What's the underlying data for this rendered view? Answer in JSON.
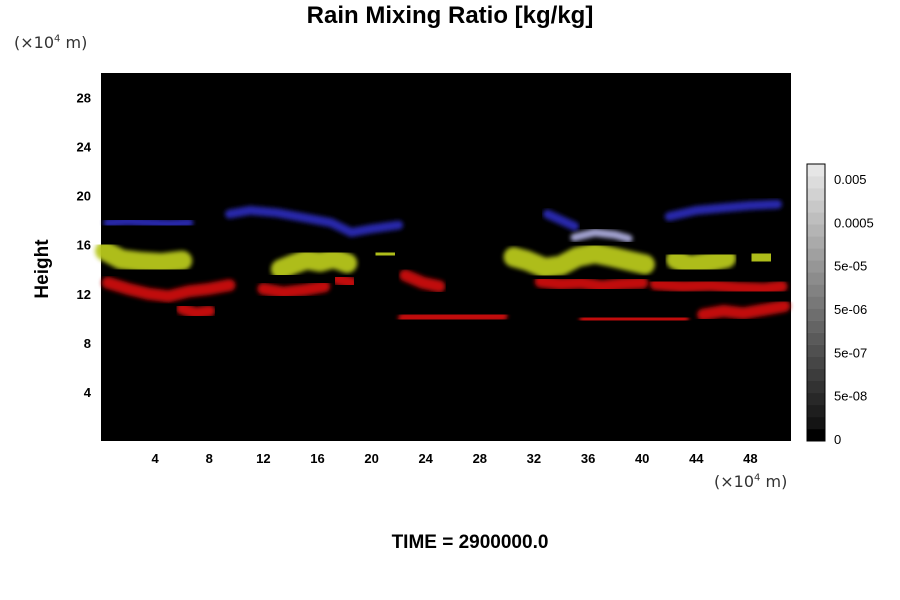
{
  "chart_data": {
    "type": "heatmap",
    "title": "Rain Mixing Ratio [kg/kg]",
    "ylabel": "Height",
    "xlabel": "",
    "x_unit": {
      "prefix": "(×10",
      "exp": "4",
      "suffix": " m)"
    },
    "y_unit": {
      "prefix": "(×10",
      "exp": "4",
      "suffix": " m)"
    },
    "xlim": [
      0,
      51
    ],
    "ylim": [
      0,
      30
    ],
    "x_ticks": [
      4,
      8,
      12,
      16,
      20,
      24,
      28,
      32,
      36,
      40,
      44,
      48
    ],
    "y_ticks": [
      4,
      8,
      12,
      16,
      20,
      24,
      28
    ],
    "colorbar": {
      "labels": [
        "0.005",
        "0.0005",
        "5e-05",
        "5e-06",
        "5e-07",
        "5e-08",
        "0"
      ],
      "shades": [
        "#000000",
        "#141414",
        "#1e1e1e",
        "#282828",
        "#323232",
        "#3c3c3c",
        "#464646",
        "#505050",
        "#5a5a5a",
        "#646464",
        "#6e6e6e",
        "#787878",
        "#828282",
        "#8c8c8c",
        "#969696",
        "#a0a0a0",
        "#aaaaaa",
        "#b4b4b4",
        "#bebebe",
        "#c8c8c8",
        "#d2d2d2",
        "#dcdcdc",
        "#e6e6e6"
      ]
    },
    "colors": {
      "background": "#000000",
      "low_band": "#cc1111",
      "mid_band": "#b8c81e",
      "high_band": "#2a2ab4",
      "cap": "#b4b4e6"
    },
    "regions": [
      {
        "band": "high",
        "points": [
          [
            0.5,
            17.8
          ],
          [
            2,
            17.9
          ],
          [
            5,
            17.7
          ],
          [
            6.5,
            17.8
          ]
        ]
      },
      {
        "band": "high",
        "points": [
          [
            9.5,
            18.5
          ],
          [
            11,
            18.8
          ],
          [
            13,
            18.6
          ],
          [
            15,
            18.2
          ],
          [
            17,
            17.8
          ],
          [
            18.5,
            17.0
          ],
          [
            20,
            17.3
          ],
          [
            22,
            17.6
          ]
        ]
      },
      {
        "band": "high",
        "points": [
          [
            33,
            18.5
          ],
          [
            34,
            18.0
          ],
          [
            35,
            17.5
          ]
        ]
      },
      {
        "band": "high",
        "points": [
          [
            42,
            18.3
          ],
          [
            44,
            18.8
          ],
          [
            46,
            19.0
          ],
          [
            48,
            19.2
          ],
          [
            50,
            19.3
          ]
        ]
      },
      {
        "band": "cap",
        "points": [
          [
            35,
            16.6
          ],
          [
            36.5,
            17.0
          ],
          [
            38,
            16.8
          ],
          [
            39,
            16.5
          ]
        ]
      },
      {
        "band": "mid",
        "points": [
          [
            0.3,
            15.5
          ],
          [
            1.5,
            14.8
          ],
          [
            3,
            14.6
          ],
          [
            4.5,
            14.5
          ],
          [
            6,
            14.7
          ]
        ]
      },
      {
        "band": "mid",
        "points": [
          [
            13.3,
            14.0
          ],
          [
            14.2,
            14.4
          ],
          [
            15.2,
            14.8
          ],
          [
            16.2,
            14.6
          ],
          [
            17.2,
            14.9
          ],
          [
            18.2,
            14.5
          ]
        ]
      },
      {
        "band": "mid",
        "points": [
          [
            20.5,
            15.3
          ],
          [
            21.5,
            15.2
          ]
        ]
      },
      {
        "band": "mid",
        "points": [
          [
            30.5,
            15.0
          ],
          [
            31.5,
            14.7
          ],
          [
            32.8,
            14.1
          ],
          [
            34,
            14.3
          ],
          [
            35.2,
            15.0
          ],
          [
            36.5,
            15.3
          ],
          [
            37.8,
            15.0
          ],
          [
            39,
            14.7
          ],
          [
            40.2,
            14.4
          ]
        ]
      },
      {
        "band": "mid",
        "points": [
          [
            42.5,
            14.8
          ],
          [
            43.5,
            14.3
          ],
          [
            45,
            14.6
          ],
          [
            46.2,
            14.9
          ]
        ]
      },
      {
        "band": "mid",
        "points": [
          [
            48.3,
            14.8
          ],
          [
            49.3,
            15.1
          ]
        ]
      },
      {
        "band": "low",
        "points": [
          [
            0.5,
            12.9
          ],
          [
            2,
            12.4
          ],
          [
            3.5,
            12.0
          ],
          [
            5,
            11.8
          ],
          [
            6.5,
            12.2
          ],
          [
            8,
            12.4
          ],
          [
            9.5,
            12.7
          ]
        ]
      },
      {
        "band": "low",
        "points": [
          [
            6,
            10.8
          ],
          [
            7,
            10.4
          ],
          [
            8,
            10.6
          ]
        ]
      },
      {
        "band": "low",
        "points": [
          [
            12,
            12.4
          ],
          [
            13.5,
            12.1
          ],
          [
            15,
            12.3
          ],
          [
            16.5,
            12.6
          ]
        ]
      },
      {
        "band": "low",
        "points": [
          [
            17.5,
            13.2
          ],
          [
            18.5,
            12.9
          ]
        ]
      },
      {
        "band": "low",
        "points": [
          [
            22.5,
            13.5
          ],
          [
            23.8,
            12.9
          ],
          [
            25,
            12.6
          ]
        ]
      },
      {
        "band": "low",
        "points": [
          [
            22.4,
            10.0
          ],
          [
            29.6,
            10.2
          ]
        ]
      },
      {
        "band": "low",
        "points": [
          [
            32.5,
            13.0
          ],
          [
            34,
            12.8
          ],
          [
            35.5,
            12.9
          ],
          [
            37,
            12.6
          ],
          [
            38.5,
            12.8
          ],
          [
            40,
            12.9
          ]
        ]
      },
      {
        "band": "low",
        "points": [
          [
            41,
            12.8
          ],
          [
            43,
            12.6
          ],
          [
            45,
            12.7
          ],
          [
            47,
            12.5
          ],
          [
            49,
            12.4
          ],
          [
            50.3,
            12.6
          ]
        ]
      },
      {
        "band": "low",
        "points": [
          [
            35.8,
            9.9
          ],
          [
            37,
            10.0
          ],
          [
            38.5,
            10.0
          ],
          [
            40,
            10.0
          ],
          [
            41.5,
            9.9
          ],
          [
            43,
            10.0
          ]
        ]
      },
      {
        "band": "low",
        "points": [
          [
            44.5,
            10.3
          ],
          [
            46,
            10.6
          ],
          [
            47.5,
            10.4
          ],
          [
            50.5,
            11.0
          ]
        ]
      }
    ]
  },
  "time_label": "TIME = 2900000.0"
}
